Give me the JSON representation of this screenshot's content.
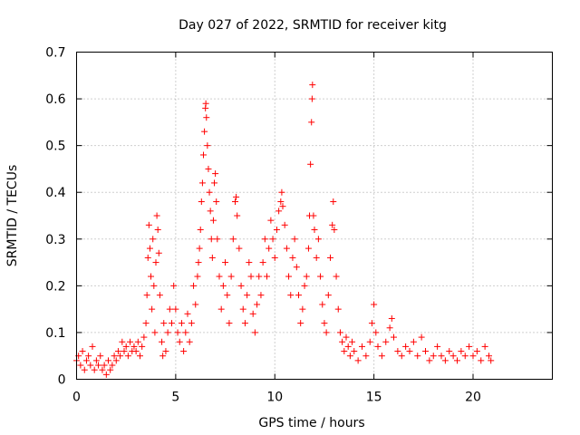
{
  "chart_data": {
    "type": "scatter",
    "title": "Day 027 of 2022, SRMTID for receiver kitg",
    "xlabel": "GPS time / hours",
    "ylabel": "SRMTID / TECUs",
    "xlim": [
      0,
      24
    ],
    "ylim": [
      0,
      0.7
    ],
    "xticks": [
      0,
      5,
      10,
      15,
      20
    ],
    "xtick_labels": [
      "0",
      "5",
      "10",
      "15",
      "20"
    ],
    "yticks": [
      0,
      0.1,
      0.2,
      0.3,
      0.4,
      0.5,
      0.6,
      0.7
    ],
    "ytick_labels": [
      "0",
      "0.1",
      "0.2",
      "0.3",
      "0.4",
      "0.5",
      "0.6",
      "0.7"
    ],
    "grid": true,
    "marker": "+",
    "color": "#ff0000",
    "series": [
      {
        "name": "SRMTID",
        "points": [
          [
            0.0,
            0.04
          ],
          [
            0.1,
            0.05
          ],
          [
            0.2,
            0.03
          ],
          [
            0.3,
            0.06
          ],
          [
            0.4,
            0.02
          ],
          [
            0.5,
            0.04
          ],
          [
            0.6,
            0.05
          ],
          [
            0.7,
            0.03
          ],
          [
            0.8,
            0.07
          ],
          [
            0.9,
            0.02
          ],
          [
            1.0,
            0.04
          ],
          [
            1.1,
            0.03
          ],
          [
            1.2,
            0.05
          ],
          [
            1.3,
            0.02
          ],
          [
            1.4,
            0.03
          ],
          [
            1.5,
            0.01
          ],
          [
            1.6,
            0.04
          ],
          [
            1.7,
            0.02
          ],
          [
            1.8,
            0.03
          ],
          [
            1.9,
            0.05
          ],
          [
            2.0,
            0.04
          ],
          [
            2.1,
            0.06
          ],
          [
            2.2,
            0.05
          ],
          [
            2.3,
            0.08
          ],
          [
            2.4,
            0.06
          ],
          [
            2.5,
            0.07
          ],
          [
            2.6,
            0.05
          ],
          [
            2.7,
            0.08
          ],
          [
            2.8,
            0.06
          ],
          [
            2.9,
            0.07
          ],
          [
            3.0,
            0.06
          ],
          [
            3.1,
            0.08
          ],
          [
            3.2,
            0.05
          ],
          [
            3.3,
            0.07
          ],
          [
            3.4,
            0.09
          ],
          [
            3.5,
            0.12
          ],
          [
            3.55,
            0.18
          ],
          [
            3.6,
            0.26
          ],
          [
            3.65,
            0.33
          ],
          [
            3.7,
            0.28
          ],
          [
            3.75,
            0.22
          ],
          [
            3.8,
            0.15
          ],
          [
            3.85,
            0.3
          ],
          [
            3.9,
            0.2
          ],
          [
            3.95,
            0.1
          ],
          [
            4.0,
            0.25
          ],
          [
            4.05,
            0.35
          ],
          [
            4.1,
            0.32
          ],
          [
            4.15,
            0.27
          ],
          [
            4.2,
            0.18
          ],
          [
            4.3,
            0.08
          ],
          [
            4.35,
            0.05
          ],
          [
            4.4,
            0.12
          ],
          [
            4.5,
            0.06
          ],
          [
            4.6,
            0.1
          ],
          [
            4.7,
            0.15
          ],
          [
            4.8,
            0.12
          ],
          [
            4.9,
            0.2
          ],
          [
            5.0,
            0.15
          ],
          [
            5.1,
            0.1
          ],
          [
            5.2,
            0.08
          ],
          [
            5.3,
            0.12
          ],
          [
            5.4,
            0.06
          ],
          [
            5.5,
            0.1
          ],
          [
            5.6,
            0.14
          ],
          [
            5.7,
            0.08
          ],
          [
            5.8,
            0.12
          ],
          [
            5.9,
            0.2
          ],
          [
            6.0,
            0.16
          ],
          [
            6.1,
            0.22
          ],
          [
            6.15,
            0.25
          ],
          [
            6.2,
            0.28
          ],
          [
            6.25,
            0.32
          ],
          [
            6.3,
            0.38
          ],
          [
            6.35,
            0.42
          ],
          [
            6.4,
            0.48
          ],
          [
            6.45,
            0.53
          ],
          [
            6.5,
            0.58
          ],
          [
            6.52,
            0.59
          ],
          [
            6.55,
            0.56
          ],
          [
            6.6,
            0.5
          ],
          [
            6.65,
            0.45
          ],
          [
            6.7,
            0.4
          ],
          [
            6.75,
            0.36
          ],
          [
            6.8,
            0.3
          ],
          [
            6.85,
            0.26
          ],
          [
            6.9,
            0.34
          ],
          [
            6.95,
            0.42
          ],
          [
            7.0,
            0.44
          ],
          [
            7.05,
            0.38
          ],
          [
            7.1,
            0.3
          ],
          [
            7.2,
            0.22
          ],
          [
            7.3,
            0.15
          ],
          [
            7.4,
            0.2
          ],
          [
            7.5,
            0.25
          ],
          [
            7.6,
            0.18
          ],
          [
            7.7,
            0.12
          ],
          [
            7.8,
            0.22
          ],
          [
            7.9,
            0.3
          ],
          [
            8.0,
            0.38
          ],
          [
            8.05,
            0.39
          ],
          [
            8.1,
            0.35
          ],
          [
            8.2,
            0.28
          ],
          [
            8.3,
            0.2
          ],
          [
            8.4,
            0.15
          ],
          [
            8.5,
            0.12
          ],
          [
            8.6,
            0.18
          ],
          [
            8.7,
            0.25
          ],
          [
            8.8,
            0.22
          ],
          [
            8.9,
            0.14
          ],
          [
            9.0,
            0.1
          ],
          [
            9.1,
            0.16
          ],
          [
            9.2,
            0.22
          ],
          [
            9.3,
            0.18
          ],
          [
            9.4,
            0.25
          ],
          [
            9.5,
            0.3
          ],
          [
            9.6,
            0.22
          ],
          [
            9.7,
            0.28
          ],
          [
            9.8,
            0.34
          ],
          [
            9.9,
            0.3
          ],
          [
            10.0,
            0.26
          ],
          [
            10.1,
            0.32
          ],
          [
            10.2,
            0.36
          ],
          [
            10.3,
            0.38
          ],
          [
            10.35,
            0.4
          ],
          [
            10.4,
            0.37
          ],
          [
            10.5,
            0.33
          ],
          [
            10.6,
            0.28
          ],
          [
            10.7,
            0.22
          ],
          [
            10.8,
            0.18
          ],
          [
            10.9,
            0.26
          ],
          [
            11.0,
            0.3
          ],
          [
            11.1,
            0.24
          ],
          [
            11.2,
            0.18
          ],
          [
            11.3,
            0.12
          ],
          [
            11.4,
            0.15
          ],
          [
            11.5,
            0.2
          ],
          [
            11.6,
            0.22
          ],
          [
            11.7,
            0.28
          ],
          [
            11.75,
            0.35
          ],
          [
            11.8,
            0.46
          ],
          [
            11.85,
            0.55
          ],
          [
            11.88,
            0.6
          ],
          [
            11.9,
            0.63
          ],
          [
            11.95,
            0.35
          ],
          [
            12.0,
            0.32
          ],
          [
            12.1,
            0.26
          ],
          [
            12.2,
            0.3
          ],
          [
            12.3,
            0.22
          ],
          [
            12.4,
            0.16
          ],
          [
            12.5,
            0.12
          ],
          [
            12.6,
            0.1
          ],
          [
            12.7,
            0.18
          ],
          [
            12.8,
            0.26
          ],
          [
            12.9,
            0.33
          ],
          [
            12.95,
            0.38
          ],
          [
            13.0,
            0.32
          ],
          [
            13.1,
            0.22
          ],
          [
            13.2,
            0.15
          ],
          [
            13.3,
            0.1
          ],
          [
            13.4,
            0.08
          ],
          [
            13.5,
            0.06
          ],
          [
            13.6,
            0.09
          ],
          [
            13.7,
            0.07
          ],
          [
            13.8,
            0.05
          ],
          [
            13.9,
            0.08
          ],
          [
            14.0,
            0.06
          ],
          [
            14.2,
            0.04
          ],
          [
            14.4,
            0.07
          ],
          [
            14.6,
            0.05
          ],
          [
            14.8,
            0.08
          ],
          [
            14.9,
            0.12
          ],
          [
            15.0,
            0.16
          ],
          [
            15.1,
            0.1
          ],
          [
            15.2,
            0.07
          ],
          [
            15.4,
            0.05
          ],
          [
            15.6,
            0.08
          ],
          [
            15.8,
            0.11
          ],
          [
            15.9,
            0.13
          ],
          [
            16.0,
            0.09
          ],
          [
            16.2,
            0.06
          ],
          [
            16.4,
            0.05
          ],
          [
            16.6,
            0.07
          ],
          [
            16.8,
            0.06
          ],
          [
            17.0,
            0.08
          ],
          [
            17.2,
            0.05
          ],
          [
            17.4,
            0.09
          ],
          [
            17.6,
            0.06
          ],
          [
            17.8,
            0.04
          ],
          [
            18.0,
            0.05
          ],
          [
            18.2,
            0.07
          ],
          [
            18.4,
            0.05
          ],
          [
            18.6,
            0.04
          ],
          [
            18.8,
            0.06
          ],
          [
            19.0,
            0.05
          ],
          [
            19.2,
            0.04
          ],
          [
            19.4,
            0.06
          ],
          [
            19.6,
            0.05
          ],
          [
            19.8,
            0.07
          ],
          [
            20.0,
            0.05
          ],
          [
            20.2,
            0.06
          ],
          [
            20.4,
            0.04
          ],
          [
            20.6,
            0.07
          ],
          [
            20.8,
            0.05
          ],
          [
            20.9,
            0.04
          ]
        ]
      }
    ]
  }
}
